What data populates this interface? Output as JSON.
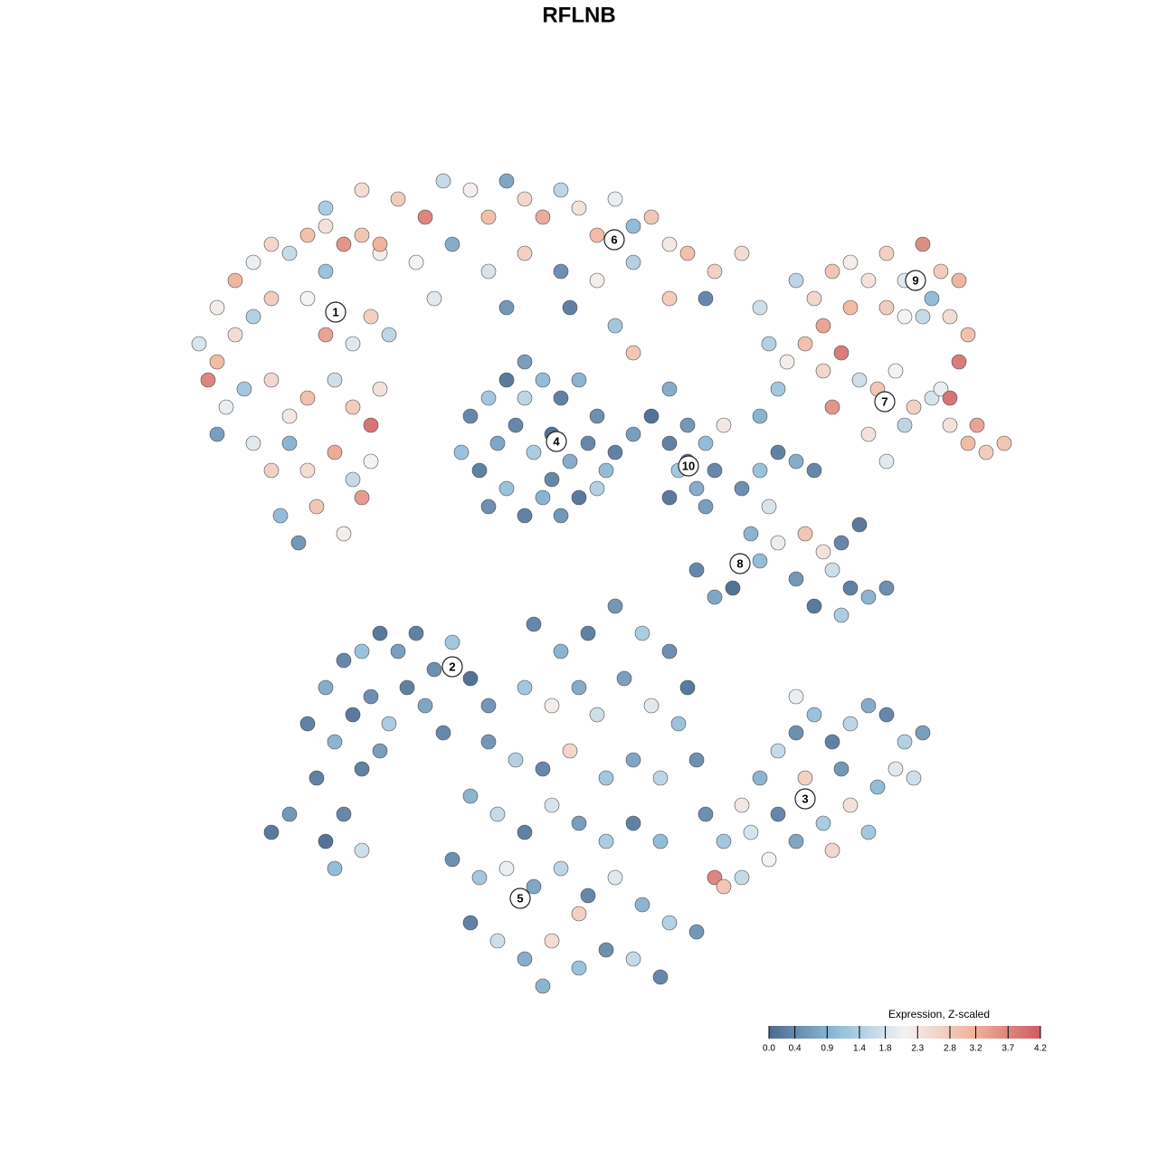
{
  "chart_data": {
    "type": "scatter",
    "title": "RFLNB",
    "xlim": [
      -64,
      64
    ],
    "ylim": [
      -64,
      64
    ],
    "x": [
      -40,
      -38,
      -36,
      -34,
      -32,
      -30,
      -28,
      -26,
      -24,
      -22,
      -42,
      -40,
      -38,
      -36,
      -34,
      -30,
      -28,
      -25,
      -23,
      -21,
      -41,
      -39,
      -37,
      -34,
      -32,
      -30,
      -27,
      -25,
      -23,
      -22,
      -36,
      -34,
      -32,
      -30,
      -27,
      -25,
      -23,
      -33,
      -31,
      -29,
      -26,
      -24,
      -40,
      -28,
      -28,
      -24,
      -20,
      -17,
      -15,
      -12,
      -10,
      -8,
      -6,
      -4,
      -2,
      0,
      2,
      4,
      6,
      8,
      10,
      12,
      15,
      18,
      -22,
      -18,
      -14,
      -10,
      -6,
      -2,
      2,
      6,
      10,
      14,
      -16,
      -8,
      4,
      6,
      -1,
      20,
      24,
      26,
      28,
      30,
      32,
      34,
      36,
      38,
      40,
      42,
      41,
      43,
      42,
      38,
      34,
      30,
      27,
      39,
      36,
      21,
      23,
      25,
      27,
      29,
      31,
      33,
      35,
      37,
      39,
      41,
      43,
      45,
      47,
      44,
      40,
      36,
      32,
      22,
      28,
      41,
      20,
      34,
      -12,
      -10,
      -8,
      -6,
      -4,
      -2,
      0,
      2,
      -13,
      -11,
      -9,
      -7,
      -5,
      -3,
      -1,
      1,
      3,
      -10,
      -8,
      -6,
      -4,
      -2,
      0,
      2,
      4,
      6,
      8,
      10,
      -6,
      -3,
      10,
      12,
      14,
      15,
      13,
      11,
      10,
      12,
      16,
      14,
      18,
      20,
      22,
      24,
      26,
      21,
      19,
      22,
      25,
      27,
      29,
      31,
      20,
      24,
      28,
      30,
      32,
      34,
      26,
      29,
      17,
      13,
      15,
      -30,
      -28,
      -26,
      -24,
      -22,
      -20,
      -18,
      -16,
      -14,
      -12,
      -10,
      -27,
      -25,
      -23,
      -21,
      -19,
      -17,
      -15,
      -24,
      -22,
      -34,
      -32,
      -28,
      -27,
      -24,
      -26,
      -29,
      -5,
      -2,
      1,
      4,
      7,
      10,
      12,
      -6,
      -3,
      0,
      2,
      5,
      8,
      11,
      -10,
      -7,
      -4,
      -1,
      3,
      6,
      9,
      13,
      -12,
      -9,
      -6,
      -3,
      0,
      3,
      6,
      9,
      -14,
      -11,
      -8,
      -5,
      -2,
      1,
      4,
      7,
      10,
      13,
      -12,
      -9,
      -6,
      -3,
      0,
      3,
      6,
      9,
      -4,
      0,
      14,
      16,
      18,
      20,
      22,
      24,
      26,
      28,
      30,
      32,
      34,
      36,
      38,
      35,
      33,
      30,
      27,
      24,
      21,
      18,
      15,
      16,
      19,
      25,
      29,
      32,
      28,
      22,
      37,
      24
    ],
    "y": [
      30,
      33,
      35,
      37,
      36,
      38,
      39,
      37,
      38,
      36,
      26,
      24,
      27,
      29,
      31,
      31,
      27,
      26,
      29,
      27,
      22,
      19,
      21,
      22,
      18,
      20,
      22,
      19,
      17,
      21,
      15,
      12,
      15,
      12,
      14,
      11,
      13,
      7,
      4,
      8,
      5,
      9,
      16,
      34,
      41,
      43,
      42,
      40,
      44,
      43,
      40,
      44,
      42,
      40,
      43,
      41,
      38,
      42,
      39,
      40,
      37,
      36,
      34,
      36,
      37,
      35,
      37,
      34,
      36,
      34,
      33,
      35,
      31,
      31,
      31,
      30,
      28,
      25,
      30,
      30,
      33,
      31,
      34,
      30,
      33,
      36,
      33,
      37,
      34,
      33,
      29,
      27,
      24,
      29,
      30,
      35,
      28,
      31,
      29,
      26,
      24,
      26,
      23,
      25,
      22,
      21,
      23,
      19,
      20,
      17,
      15,
      14,
      15,
      17,
      21,
      17,
      16,
      21,
      19,
      20,
      18,
      13,
      18,
      20,
      22,
      24,
      22,
      20,
      22,
      18,
      14,
      12,
      15,
      17,
      14,
      16,
      13,
      15,
      12,
      8,
      10,
      7,
      9,
      7,
      9,
      10,
      14,
      16,
      18,
      21,
      20,
      11,
      15,
      17,
      15,
      12,
      10,
      12,
      9,
      13,
      17,
      8,
      10,
      12,
      14,
      13,
      12,
      8,
      5,
      4,
      5,
      3,
      4,
      6,
      2,
      0,
      1,
      -1,
      -2,
      -1,
      -3,
      -4,
      -1,
      1,
      -2,
      -16,
      -12,
      -9,
      -8,
      -6,
      -8,
      -6,
      -10,
      -7,
      -11,
      -14,
      -18,
      -15,
      -13,
      -16,
      -12,
      -14,
      -17,
      -21,
      -19,
      -28,
      -26,
      -29,
      -32,
      -30,
      -26,
      -22,
      -5,
      -8,
      -6,
      -3,
      -6,
      -8,
      -12,
      -12,
      -14,
      -12,
      -15,
      -11,
      -14,
      -16,
      -18,
      -20,
      -21,
      -19,
      -22,
      -20,
      -22,
      -20,
      -24,
      -26,
      -28,
      -25,
      -27,
      -29,
      -27,
      -29,
      -31,
      -33,
      -32,
      -34,
      -32,
      -35,
      -33,
      -36,
      -38,
      -39,
      -38,
      -40,
      -42,
      -40,
      -43,
      -41,
      -42,
      -44,
      -45,
      -37,
      -26,
      -29,
      -25,
      -22,
      -19,
      -17,
      -15,
      -18,
      -16,
      -14,
      -15,
      -18,
      -17,
      -21,
      -23,
      -25,
      -27,
      -29,
      -31,
      -33,
      -33,
      -34,
      -28,
      -22,
      -21,
      -28,
      -30,
      -26,
      -22,
      -13
    ],
    "values": [
      2.2,
      3.2,
      2.0,
      2.6,
      1.6,
      3.0,
      2.4,
      3.6,
      2.9,
      2.2,
      1.8,
      3.1,
      2.5,
      1.4,
      2.8,
      2.1,
      3.4,
      1.9,
      2.7,
      1.5,
      3.8,
      2.0,
      1.2,
      2.6,
      2.3,
      3.0,
      1.7,
      2.8,
      4.0,
      2.4,
      1.9,
      2.7,
      0.9,
      2.5,
      3.3,
      1.6,
      2.1,
      1.0,
      0.5,
      2.9,
      2.2,
      3.5,
      0.6,
      1.1,
      1.3,
      2.5,
      2.8,
      3.8,
      1.6,
      2.2,
      3.0,
      0.7,
      2.6,
      3.3,
      1.5,
      2.4,
      3.1,
      2.0,
      1.0,
      2.9,
      2.3,
      3.0,
      2.7,
      2.5,
      3.2,
      2.1,
      0.8,
      1.8,
      2.7,
      0.4,
      2.2,
      1.4,
      2.8,
      0.3,
      1.9,
      0.5,
      1.2,
      2.9,
      0.2,
      1.7,
      1.5,
      2.6,
      2.9,
      3.1,
      2.4,
      2.7,
      1.9,
      3.7,
      2.8,
      3.2,
      2.5,
      3.0,
      3.9,
      1.6,
      2.8,
      2.2,
      3.4,
      1.0,
      2.1,
      1.4,
      2.2,
      3.0,
      2.6,
      3.9,
      1.7,
      2.9,
      2.1,
      2.7,
      1.8,
      2.4,
      3.1,
      2.8,
      2.9,
      3.4,
      2.0,
      1.5,
      2.4,
      1.2,
      3.6,
      4.0,
      0.9,
      1.9,
      0.3,
      1.2,
      0.1,
      0.6,
      1.0,
      0.2,
      0.9,
      0.4,
      1.1,
      0.2,
      0.7,
      0.3,
      1.3,
      0.0,
      0.8,
      0.3,
      1.0,
      0.4,
      1.1,
      0.2,
      0.9,
      0.5,
      0.1,
      1.4,
      0.2,
      0.6,
      0.0,
      0.8,
      1.5,
      0.3,
      0.2,
      0.5,
      1.0,
      0.3,
      0.8,
      1.2,
      0.1,
      0.0,
      2.3,
      0.6,
      0.4,
      1.1,
      0.2,
      0.8,
      0.3,
      1.8,
      0.9,
      2.0,
      2.9,
      2.4,
      0.3,
      0.1,
      1.0,
      0.5,
      1.7,
      0.2,
      0.9,
      0.4,
      0.1,
      1.3,
      0.0,
      0.3,
      0.7,
      0.2,
      0.8,
      0.3,
      1.1,
      0.1,
      0.6,
      0.2,
      0.4,
      1.2,
      0.0,
      0.5,
      0.9,
      0.1,
      0.4,
      1.3,
      0.2,
      0.7,
      0.3,
      0.2,
      0.6,
      0.1,
      0.5,
      0.0,
      1.0,
      1.7,
      0.3,
      0.2,
      0.3,
      0.9,
      0.2,
      0.5,
      1.3,
      0.4,
      0.1,
      1.2,
      2.2,
      0.8,
      1.7,
      0.6,
      1.9,
      1.1,
      0.5,
      1.4,
      0.3,
      2.6,
      1.2,
      0.7,
      1.5,
      0.4,
      0.9,
      1.6,
      0.2,
      1.8,
      0.6,
      1.3,
      0.2,
      1.0,
      0.4,
      1.2,
      2.0,
      0.7,
      1.5,
      0.3,
      1.9,
      0.9,
      1.4,
      0.5,
      0.2,
      1.7,
      0.8,
      2.5,
      1.1,
      0.4,
      1.6,
      0.3,
      0.9,
      2.7,
      0.4,
      1.2,
      2.3,
      0.9,
      1.6,
      0.4,
      1.1,
      0.2,
      1.5,
      0.8,
      0.3,
      1.4,
      0.6,
      1.9,
      1.0,
      2.4,
      1.3,
      0.7,
      2.1,
      1.6,
      3.8,
      2.9,
      1.8,
      2.7,
      0.5,
      1.2,
      2.6,
      0.3,
      1.7,
      2.0
    ],
    "cluster_labels": [
      {
        "label": "1",
        "x": -26.9,
        "y": 29.5
      },
      {
        "label": "2",
        "x": -14,
        "y": -9.7
      },
      {
        "label": "3",
        "x": 25,
        "y": -24.3
      },
      {
        "label": "4",
        "x": -2.5,
        "y": 15.2
      },
      {
        "label": "5",
        "x": -6.5,
        "y": -35.3
      },
      {
        "label": "6",
        "x": 3.9,
        "y": 37.5
      },
      {
        "label": "7",
        "x": 33.8,
        "y": 19.6
      },
      {
        "label": "8",
        "x": 17.8,
        "y": 1.7
      },
      {
        "label": "9",
        "x": 37.2,
        "y": 33
      },
      {
        "label": "10",
        "x": 12.1,
        "y": 12.5
      }
    ],
    "colorbar_title": "Expression, Z-scaled",
    "colorlim": [
      0,
      4.2
    ],
    "colors": [
      "#4b6a91",
      "#8fbcd9",
      "#f2f2f2",
      "#f1b49d",
      "#cd5c64"
    ],
    "colorbar_ticks": [
      {
        "value": 0,
        "label": "0.0"
      },
      0.4,
      0.9,
      1.4,
      1.8,
      2.3,
      2.8,
      3.2,
      3.7,
      4.2
    ]
  }
}
